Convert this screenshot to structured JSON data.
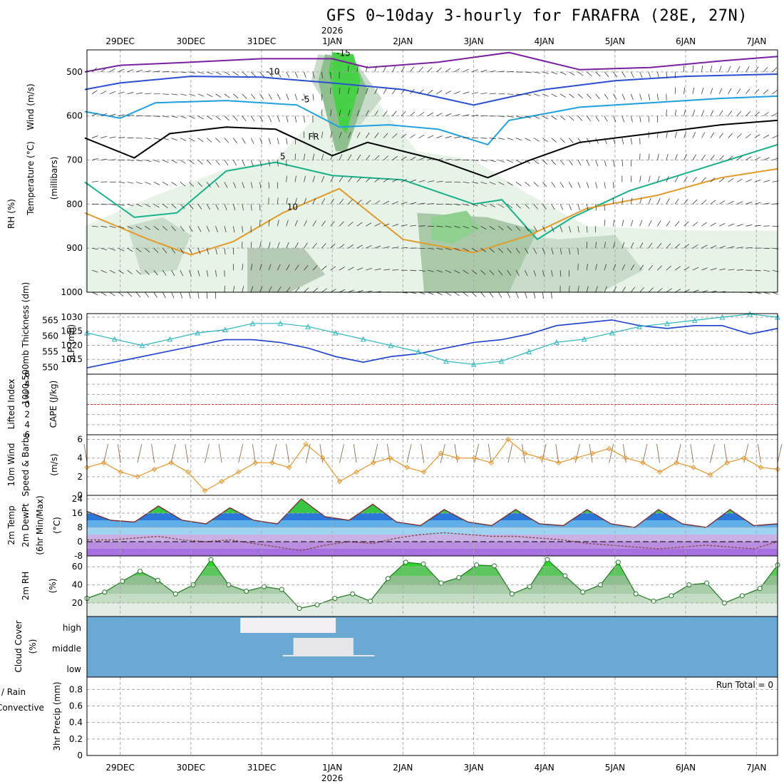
{
  "title": "GFS 0~10day 3-hourly for FARAFRA (28E, 27N)",
  "colors": {
    "frame": "#000000",
    "grid": "#aaaaaa",
    "slp": "#1a3fd1",
    "thickness": "#29b5c2",
    "wind10": "#e8952b",
    "temp": "#1aa83a",
    "dew": "#8b4a4a",
    "rh": "#35b84a",
    "cloud": "#6aa9d4",
    "cloudHigh": "#f3f0f5",
    "cloudMid": "#e6e6e8",
    "li": "#d93a3a",
    "cape": "#b77bd6",
    "precip": "#1aa83a",
    "convective": "#e03030"
  },
  "chart_data": {
    "type": "meteogram",
    "time_axis": {
      "top_labels": [
        "29DEC",
        "30DEC",
        "31DEC",
        "1JAN",
        "2JAN",
        "3JAN",
        "4JAN",
        "5JAN",
        "6JAN",
        "7JAN"
      ],
      "year_label": "2026",
      "bottom_labels": [
        "29DEC",
        "30DEC",
        "31DEC",
        "1JAN",
        "2JAN",
        "3JAN",
        "4JAN",
        "5JAN",
        "6JAN",
        "7JAN"
      ],
      "start_day_offset": -0.47,
      "end_day_offset": 9.3
    },
    "panels": [
      {
        "id": "upper",
        "ylabel": "Wind (m/s)",
        "ylabel2": "Temperature (°C)",
        "ylabel3": "RH (%)",
        "ylabel4": "(millibars)",
        "yticks": [
          "500",
          "600",
          "700",
          "800",
          "900",
          "1000"
        ],
        "ylim": [
          450,
          1000
        ],
        "isotherm_labels": [
          "-15",
          "-10",
          "-5",
          "FR",
          "5",
          "10"
        ],
        "isotherms": [
          {
            "label": "-15",
            "color": "#7a1fa0",
            "points": [
              [
                -0.5,
                500
              ],
              [
                0,
                485
              ],
              [
                1,
                478
              ],
              [
                2,
                470
              ],
              [
                3,
                470
              ],
              [
                3.5,
                490
              ],
              [
                4.5,
                478
              ],
              [
                5.5,
                456
              ],
              [
                6.5,
                495
              ],
              [
                7.5,
                490
              ],
              [
                8.5,
                475
              ],
              [
                9.3,
                465
              ]
            ]
          },
          {
            "label": "-10",
            "color": "#2a4fd1",
            "points": [
              [
                -0.5,
                540
              ],
              [
                0,
                525
              ],
              [
                1,
                510
              ],
              [
                2,
                512
              ],
              [
                3,
                525
              ],
              [
                4,
                540
              ],
              [
                5,
                575
              ],
              [
                6,
                540
              ],
              [
                7,
                520
              ],
              [
                8,
                510
              ],
              [
                9.3,
                505
              ]
            ]
          },
          {
            "label": "-5",
            "color": "#1f9fe0",
            "points": [
              [
                -0.5,
                590
              ],
              [
                0,
                605
              ],
              [
                0.5,
                570
              ],
              [
                1.5,
                565
              ],
              [
                2.5,
                575
              ],
              [
                3.1,
                625
              ],
              [
                3.8,
                620
              ],
              [
                4.5,
                630
              ],
              [
                5.2,
                665
              ],
              [
                5.5,
                610
              ],
              [
                6.5,
                580
              ],
              [
                7.5,
                570
              ],
              [
                8.5,
                560
              ],
              [
                9.3,
                555
              ]
            ]
          },
          {
            "label": "FR",
            "color": "#000000",
            "points": [
              [
                -0.5,
                650
              ],
              [
                0.2,
                695
              ],
              [
                0.7,
                640
              ],
              [
                1.5,
                625
              ],
              [
                2.2,
                630
              ],
              [
                2.6,
                660
              ],
              [
                3,
                690
              ],
              [
                3.5,
                660
              ],
              [
                4.5,
                700
              ],
              [
                5.2,
                740
              ],
              [
                5.8,
                700
              ],
              [
                6.5,
                660
              ],
              [
                7.5,
                640
              ],
              [
                8.5,
                620
              ],
              [
                9.3,
                610
              ]
            ]
          },
          {
            "label": "5",
            "color": "#17b08a",
            "points": [
              [
                -0.5,
                750
              ],
              [
                0.2,
                830
              ],
              [
                0.8,
                820
              ],
              [
                1.5,
                725
              ],
              [
                2.2,
                705
              ],
              [
                3,
                735
              ],
              [
                4,
                745
              ],
              [
                5,
                800
              ],
              [
                5.4,
                790
              ],
              [
                5.9,
                880
              ],
              [
                6.4,
                830
              ],
              [
                7.2,
                770
              ],
              [
                8.2,
                720
              ],
              [
                9.3,
                665
              ]
            ]
          },
          {
            "label": "10",
            "color": "#e29a2b",
            "points": [
              [
                -0.5,
                820
              ],
              [
                0.4,
                880
              ],
              [
                1,
                915
              ],
              [
                1.6,
                885
              ],
              [
                2.3,
                820
              ],
              [
                3.1,
                765
              ],
              [
                4,
                880
              ],
              [
                5,
                910
              ],
              [
                5.8,
                870
              ],
              [
                6.6,
                810
              ],
              [
                7.6,
                780
              ],
              [
                8.5,
                740
              ],
              [
                9.3,
                720
              ]
            ]
          }
        ]
      },
      {
        "id": "slp_thickness",
        "ylabel": "1000-500mb Thickness (dm)",
        "ylabel2": "SLP (mb)",
        "yticks_left": [
          "565",
          "560",
          "555",
          "550"
        ],
        "yticks_right": [
          "1030",
          "1025",
          "1020",
          "1015"
        ],
        "slp_y": [
          1012,
          1014,
          1016,
          1018,
          1020,
          1022,
          1022,
          1021,
          1019,
          1016,
          1014,
          1016,
          1017,
          1019,
          1021,
          1022,
          1024,
          1027,
          1028,
          1029,
          1027,
          1026,
          1027,
          1027,
          1024,
          1026
        ],
        "thickness_y": [
          561,
          559,
          557,
          559,
          561,
          562,
          564,
          564,
          563,
          561,
          559,
          557,
          555,
          552,
          551,
          552,
          555,
          558,
          559,
          561,
          563,
          564,
          565,
          566,
          567,
          566
        ]
      },
      {
        "id": "lifted_cape",
        "ylabel": "Lifted Index",
        "ylabel2": "CAPE (J/kg)",
        "yticks": [
          "-6",
          "-4",
          "-2",
          "0",
          "2",
          "4",
          "6"
        ],
        "li_zero": 0
      },
      {
        "id": "wind10",
        "ylabel": "10m Wind",
        "ylabel2": "Speed & Barbs",
        "ylabel3": "(m/s)",
        "yticks": [
          "6",
          "4",
          "2",
          "0"
        ],
        "ylim": [
          0,
          6.5
        ],
        "speed": [
          3,
          3.5,
          2.5,
          2,
          2.8,
          3.5,
          2.5,
          0.5,
          1.5,
          2.5,
          3.5,
          3.5,
          3,
          5.5,
          4,
          1.5,
          2.5,
          3.5,
          4,
          3,
          2.5,
          4.5,
          4,
          4,
          3.5,
          6,
          4.5,
          4,
          3.5,
          4,
          4.5,
          5,
          4,
          3.5,
          2.5,
          3.5,
          3,
          2.2,
          3.5,
          4,
          3,
          2.8
        ]
      },
      {
        "id": "temp",
        "ylabel": "2m Temp",
        "ylabel2": "2m DewPt",
        "ylabel3": "(6hr Min/Max)",
        "ylabel4": "(°C)",
        "yticks": [
          "24",
          "16",
          "8",
          "0",
          "-8"
        ],
        "ylim": [
          -8,
          26
        ],
        "temp_c": [
          17,
          12,
          11,
          20,
          12,
          10,
          19,
          12,
          10,
          24,
          14,
          12,
          21,
          11,
          9,
          18,
          11,
          9,
          18,
          10,
          9,
          18,
          10,
          8,
          18,
          10,
          8,
          18,
          9,
          10
        ],
        "dew_c": [
          1,
          1,
          2,
          3,
          1,
          0,
          1,
          -1,
          -3,
          -5,
          -2,
          0,
          -1,
          2,
          4,
          5,
          4,
          3,
          3,
          2,
          1,
          -1,
          -2,
          -3,
          -4,
          -3,
          -2,
          -3,
          -4,
          0
        ]
      },
      {
        "id": "rh",
        "ylabel": "2m RH",
        "ylabel2": "(%)",
        "yticks": [
          "60",
          "40",
          "20"
        ],
        "ylim": [
          5,
          72
        ],
        "rh_pct": [
          25,
          32,
          44,
          55,
          45,
          30,
          40,
          68,
          40,
          33,
          38,
          35,
          14,
          18,
          25,
          30,
          22,
          47,
          65,
          63,
          42,
          48,
          62,
          61,
          30,
          38,
          68,
          50,
          32,
          40,
          65,
          30,
          22,
          28,
          40,
          42,
          20,
          28,
          36,
          62
        ]
      },
      {
        "id": "cloud",
        "ylabel": "Cloud Cover",
        "ylabel2": "(%)",
        "yticks": [
          "high",
          "middle",
          "low"
        ]
      },
      {
        "id": "precip",
        "ylabel": "Total / Rain",
        "ylabel2": "Convective",
        "ylabel3": "3hr Precip (mm)",
        "yticks": [
          "0.8",
          "0.6",
          "0.4",
          "0.2",
          "0"
        ],
        "run_total": "Run Total = 0",
        "precip_mm": [
          0,
          0,
          0,
          0,
          0,
          0,
          0,
          0,
          0,
          0
        ]
      }
    ]
  }
}
